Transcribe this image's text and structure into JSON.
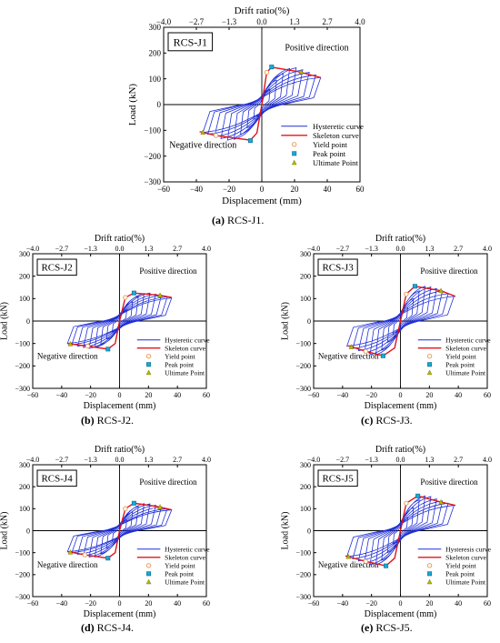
{
  "figure": {
    "panels": [
      {
        "letter": "(a)",
        "title": "RCS-J1."
      },
      {
        "letter": "(b)",
        "title": "RCS-J2."
      },
      {
        "letter": "(c)",
        "title": "RCS-J3."
      },
      {
        "letter": "(d)",
        "title": "RCS-J4."
      },
      {
        "letter": "(e)",
        "title": "RCS-J5."
      }
    ]
  },
  "colors": {
    "hysteretic": "#1f2fd6",
    "skeleton": "#e0141e",
    "yield": "#e8a060",
    "peak": "#1aa7d6",
    "ultimate": "#b8b800"
  },
  "chart_data": [
    {
      "type": "line",
      "specimen": "RCS-J1",
      "xlabel": "Displacement (mm)",
      "ylabel": "Load (kN)",
      "x2label": "Drift ratio(%)",
      "xlim": [
        -60,
        60
      ],
      "ylim": [
        -300,
        300
      ],
      "xticks": [
        -60,
        -40,
        -20,
        0,
        20,
        40,
        60
      ],
      "yticks": [
        -300,
        -200,
        -100,
        0,
        100,
        200,
        300
      ],
      "x2ticks": [
        "-4.0",
        "-2.7",
        "-1.3",
        "0.0",
        "1.3",
        "2.7",
        "4.0"
      ],
      "grid": false,
      "legend_position": "lower-right",
      "annotations": [
        "Positive direction",
        "Negative direction"
      ],
      "legend": [
        "Hysteretic curve",
        "Skeleton curve",
        "Yield point",
        "Peak point",
        "Ultimate Point"
      ],
      "series": [
        {
          "name": "Skeleton curve",
          "points": [
            [
              -38,
              -105
            ],
            [
              -28,
              -120
            ],
            [
              -7,
              -138
            ],
            [
              -3,
              -110
            ],
            [
              0,
              0
            ],
            [
              3,
              125
            ],
            [
              6,
              145
            ],
            [
              22,
              128
            ],
            [
              36,
              105
            ]
          ]
        },
        {
          "name": "Yield point",
          "points": [
            [
              -28,
              -120
            ],
            [
              3,
              125
            ]
          ]
        },
        {
          "name": "Peak point",
          "points": [
            [
              -7,
              -140
            ],
            [
              6,
              146
            ]
          ]
        },
        {
          "name": "Ultimate Point",
          "points": [
            [
              -36,
              -108
            ],
            [
              24,
              127
            ]
          ]
        }
      ],
      "hysteresis_amplitudes": [
        [
          5,
          60,
          -58
        ],
        [
          9,
          95,
          -90
        ],
        [
          13,
          120,
          -115
        ],
        [
          17,
          140,
          -135
        ],
        [
          21,
          143,
          -138
        ],
        [
          25,
          135,
          -132
        ],
        [
          29,
          125,
          -125
        ],
        [
          33,
          115,
          -115
        ],
        [
          36,
          105,
          -108
        ]
      ]
    },
    {
      "type": "line",
      "specimen": "RCS-J2",
      "xlabel": "Displacement (mm)",
      "ylabel": "Load (kN)",
      "x2label": "Drift ratio(%)",
      "xlim": [
        -60,
        60
      ],
      "ylim": [
        -300,
        300
      ],
      "xticks": [
        -60,
        -40,
        -20,
        0,
        20,
        40,
        60
      ],
      "yticks": [
        -300,
        -200,
        -100,
        0,
        100,
        200,
        300
      ],
      "x2ticks": [
        "-4.0",
        "-2.7",
        "-1.3",
        "0.0",
        "1.3",
        "2.7",
        "4.0"
      ],
      "grid": false,
      "legend_position": "lower-right",
      "annotations": [
        "Positive direction",
        "Negative direction"
      ],
      "legend": [
        "Hysteretic curve",
        "Skeleton curve",
        "Yield point",
        "Peak point",
        "Ultimate Point"
      ],
      "series": [
        {
          "name": "Skeleton curve",
          "points": [
            [
              -36,
              -100
            ],
            [
              -22,
              -112
            ],
            [
              -8,
              -125
            ],
            [
              -3,
              -100
            ],
            [
              0,
              0
            ],
            [
              4,
              105
            ],
            [
              10,
              125
            ],
            [
              28,
              115
            ],
            [
              36,
              105
            ]
          ]
        },
        {
          "name": "Yield point",
          "points": [
            [
              -22,
              -112
            ],
            [
              4,
              105
            ]
          ]
        },
        {
          "name": "Peak point",
          "points": [
            [
              -8,
              -125
            ],
            [
              10,
              125
            ]
          ]
        },
        {
          "name": "Ultimate Point",
          "points": [
            [
              -34,
              -102
            ],
            [
              28,
              115
            ]
          ]
        }
      ],
      "hysteresis_amplitudes": [
        [
          5,
          50,
          -50
        ],
        [
          9,
          85,
          -80
        ],
        [
          13,
          110,
          -105
        ],
        [
          17,
          123,
          -118
        ],
        [
          21,
          125,
          -122
        ],
        [
          25,
          120,
          -118
        ],
        [
          29,
          115,
          -112
        ],
        [
          33,
          108,
          -105
        ],
        [
          36,
          103,
          -100
        ]
      ]
    },
    {
      "type": "line",
      "specimen": "RCS-J3",
      "xlabel": "Displacement (mm)",
      "ylabel": "Load (kN)",
      "x2label": "Drift ratio(%)",
      "xlim": [
        -60,
        60
      ],
      "ylim": [
        -300,
        300
      ],
      "xticks": [
        -60,
        -40,
        -20,
        0,
        20,
        40,
        60
      ],
      "yticks": [
        -300,
        -200,
        -100,
        0,
        100,
        200,
        300
      ],
      "x2ticks": [
        "-4.0",
        "-2.7",
        "-1.3",
        "0.0",
        "1.3",
        "2.7",
        "4.0"
      ],
      "grid": false,
      "legend_position": "lower-right",
      "annotations": [
        "Positive direction",
        "Negative direction"
      ],
      "legend": [
        "Hysteretic curve",
        "Skeleton curve",
        "Yield point",
        "Peak point",
        "Ultimate Point"
      ],
      "series": [
        {
          "name": "Skeleton curve",
          "points": [
            [
              -36,
              -110
            ],
            [
              -24,
              -135
            ],
            [
              -12,
              -155
            ],
            [
              -4,
              -120
            ],
            [
              0,
              0
            ],
            [
              4,
              120
            ],
            [
              10,
              155
            ],
            [
              28,
              135
            ],
            [
              38,
              110
            ]
          ]
        },
        {
          "name": "Yield point",
          "points": [
            [
              -24,
              -135
            ],
            [
              4,
              120
            ]
          ]
        },
        {
          "name": "Peak point",
          "points": [
            [
              -12,
              -155
            ],
            [
              10,
              155
            ]
          ]
        },
        {
          "name": "Ultimate Point",
          "points": [
            [
              -34,
              -115
            ],
            [
              28,
              135
            ]
          ]
        }
      ],
      "hysteresis_amplitudes": [
        [
          5,
          60,
          -60
        ],
        [
          9,
          100,
          -95
        ],
        [
          13,
          135,
          -130
        ],
        [
          17,
          155,
          -150
        ],
        [
          21,
          152,
          -150
        ],
        [
          25,
          145,
          -142
        ],
        [
          29,
          135,
          -132
        ],
        [
          33,
          122,
          -122
        ],
        [
          37,
          110,
          -112
        ]
      ]
    },
    {
      "type": "line",
      "specimen": "RCS-J4",
      "xlabel": "Displacement (mm)",
      "ylabel": "Load (kN)",
      "x2label": "Drift ratio(%)",
      "xlim": [
        -60,
        60
      ],
      "ylim": [
        -300,
        300
      ],
      "xticks": [
        -60,
        -40,
        -20,
        0,
        20,
        40,
        60
      ],
      "yticks": [
        -300,
        -200,
        -100,
        0,
        100,
        200,
        300
      ],
      "x2ticks": [
        "-4.0",
        "-2.7",
        "-1.3",
        "0.0",
        "1.3",
        "2.7",
        "4.0"
      ],
      "grid": false,
      "legend_position": "lower-right",
      "annotations": [
        "Positive direction",
        "Negative direction"
      ],
      "legend": [
        "Hysteretic curve",
        "Skeleton curve",
        "Yield point",
        "Peak point",
        "Ultimate Point"
      ],
      "series": [
        {
          "name": "Skeleton curve",
          "points": [
            [
              -36,
              -95
            ],
            [
              -24,
              -110
            ],
            [
              -8,
              -125
            ],
            [
              -3,
              -100
            ],
            [
              0,
              0
            ],
            [
              4,
              100
            ],
            [
              10,
              125
            ],
            [
              26,
              110
            ],
            [
              36,
              95
            ]
          ]
        },
        {
          "name": "Yield point",
          "points": [
            [
              -24,
              -110
            ],
            [
              4,
              100
            ]
          ]
        },
        {
          "name": "Peak point",
          "points": [
            [
              -8,
              -125
            ],
            [
              10,
              125
            ]
          ]
        },
        {
          "name": "Ultimate Point",
          "points": [
            [
              -34,
              -98
            ],
            [
              28,
              108
            ]
          ]
        }
      ],
      "hysteresis_amplitudes": [
        [
          5,
          50,
          -50
        ],
        [
          9,
          85,
          -80
        ],
        [
          13,
          110,
          -105
        ],
        [
          17,
          123,
          -120
        ],
        [
          21,
          122,
          -120
        ],
        [
          25,
          116,
          -115
        ],
        [
          29,
          108,
          -108
        ],
        [
          33,
          100,
          -100
        ],
        [
          36,
          95,
          -96
        ]
      ]
    },
    {
      "type": "line",
      "specimen": "RCS-J5",
      "xlabel": "Displacement (mm)",
      "ylabel": "Load (kN)",
      "x2label": "Drift ratio(%)",
      "xlim": [
        -60,
        60
      ],
      "ylim": [
        -300,
        300
      ],
      "xticks": [
        -60,
        -40,
        -20,
        0,
        20,
        40,
        60
      ],
      "yticks": [
        -300,
        -200,
        -100,
        0,
        100,
        200,
        300
      ],
      "x2ticks": [
        "-4.0",
        "-2.7",
        "-1.3",
        "0.0",
        "1.3",
        "2.7",
        "4.0"
      ],
      "grid": false,
      "legend_position": "lower-right",
      "annotations": [
        "Positive direction",
        "Negative direction"
      ],
      "legend": [
        "Hysteresis curve",
        "Skeleton curve",
        "Yield point",
        "Peak point",
        "Ultimate Point"
      ],
      "series": [
        {
          "name": "Skeleton curve",
          "points": [
            [
              -38,
              -115
            ],
            [
              -24,
              -140
            ],
            [
              -10,
              -160
            ],
            [
              -4,
              -125
            ],
            [
              0,
              0
            ],
            [
              4,
              125
            ],
            [
              12,
              158
            ],
            [
              28,
              130
            ],
            [
              38,
              115
            ]
          ]
        },
        {
          "name": "Yield point",
          "points": [
            [
              -24,
              -140
            ],
            [
              4,
              125
            ]
          ]
        },
        {
          "name": "Peak point",
          "points": [
            [
              -10,
              -160
            ],
            [
              12,
              158
            ]
          ]
        },
        {
          "name": "Ultimate Point",
          "points": [
            [
              -36,
              -118
            ],
            [
              28,
              130
            ]
          ]
        }
      ],
      "hysteresis_amplitudes": [
        [
          5,
          60,
          -60
        ],
        [
          9,
          105,
          -100
        ],
        [
          13,
          140,
          -135
        ],
        [
          17,
          158,
          -155
        ],
        [
          21,
          155,
          -155
        ],
        [
          25,
          145,
          -148
        ],
        [
          29,
          135,
          -138
        ],
        [
          33,
          125,
          -128
        ],
        [
          37,
          115,
          -118
        ]
      ]
    }
  ]
}
